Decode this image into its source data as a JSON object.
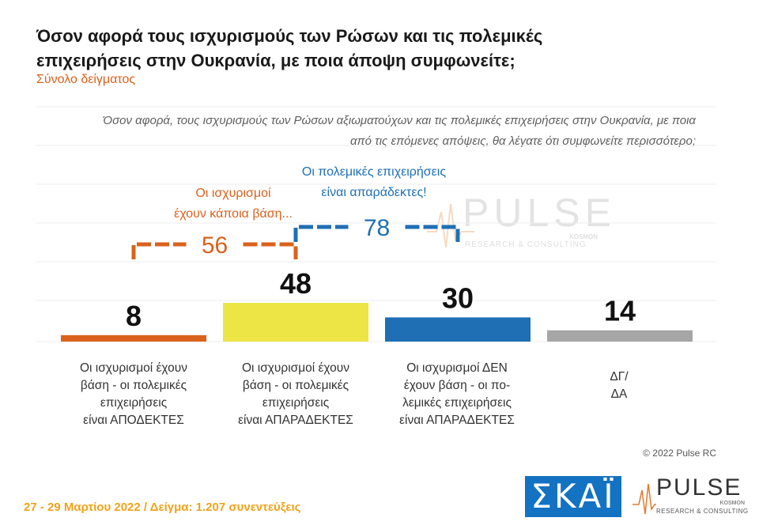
{
  "header": {
    "title": "Όσον αφορά τους ισχυρισμούς των Ρώσων και τις πολεμικές επιχειρήσεις στην Ουκρανία, με ποια άποψη συμφωνείτε;",
    "subtitle": "Σύνολο δείγματος",
    "question": "Όσον αφορά, τους ισχυρισμούς των Ρώσων αξιωματούχων και τις πολεμικές επιχειρήσεις στην Ουκρανία, με ποια από τις επόμενες απόψεις, θα λέγατε ότι συμφωνείτε περισσότερο;"
  },
  "colors": {
    "orange": "#d9621c",
    "yellow": "#ede545",
    "blue": "#1f6fb5",
    "gray": "#a6a6a6",
    "footer": "#f0a31a"
  },
  "chart_data": {
    "type": "bar",
    "categories": [
      "Οι ισχυρισμοί έχουν βάση - οι πολεμικές επιχειρήσεις είναι ΑΠΟΔΕΚΤΕΣ",
      "Οι ισχυρισμοί έχουν βάση - οι πολεμικές επιχειρήσεις είναι ΑΠΑΡΑΔΕΚΤΕΣ",
      "Οι ισχυρισμοί ΔΕΝ έχουν βάση - οι πολεμικές επιχειρήσεις είναι ΑΠΑΡΑΔΕΚΤΕΣ",
      "ΔΓ/ΔΑ"
    ],
    "category_lines": [
      [
        "Οι ισχυρισμοί έχουν",
        "βάση - οι πολεμικές",
        "επιχειρήσεις",
        "είναι ΑΠΟΔΕΚΤΕΣ"
      ],
      [
        "Οι ισχυρισμοί έχουν",
        "βάση - οι πολεμικές",
        "επιχειρήσεις",
        "είναι ΑΠΑΡΑΔΕΚΤΕΣ"
      ],
      [
        "Οι ισχυρισμοί ΔΕΝ",
        "έχουν βάση - οι πο-",
        "λεμικές επιχειρήσεις",
        "είναι ΑΠΑΡΑΔΕΚΤΕΣ"
      ],
      [
        "ΔΓ/",
        "ΔΑ"
      ]
    ],
    "values": [
      8,
      48,
      30,
      14
    ],
    "bar_colors": [
      "#d9621c",
      "#ede545",
      "#1f6fb5",
      "#a6a6a6"
    ],
    "groups": [
      {
        "label_lines": [
          "Οι ισχυρισμοί",
          "έχουν κάποια βάση..."
        ],
        "value": 56,
        "color": "#d9621c",
        "from": 0,
        "to": 1
      },
      {
        "label_lines": [
          "Οι πολεμικές επιχειρήσεις",
          "είναι απαράδεκτες!"
        ],
        "value": 78,
        "color": "#1f6fb5",
        "from": 1,
        "to": 2
      }
    ],
    "ylim": [
      0,
      100
    ],
    "grid": true
  },
  "watermark": {
    "name": "PULSE",
    "kosmon": "KOSMON",
    "sub": "RESEARCH & CONSULTING"
  },
  "footer": {
    "copyright": "© 2022 Pulse RC",
    "date_sample": "27 - 29  Μαρτίου  2022  /  Δείγμα:  1.207 συνεντεύξεις"
  },
  "logos": {
    "skai": "ΣΚΑΪ",
    "pulse": "PULSE",
    "pulse_kosmon": "KOSMON",
    "pulse_sub": "RESEARCH & CONSULTING"
  }
}
